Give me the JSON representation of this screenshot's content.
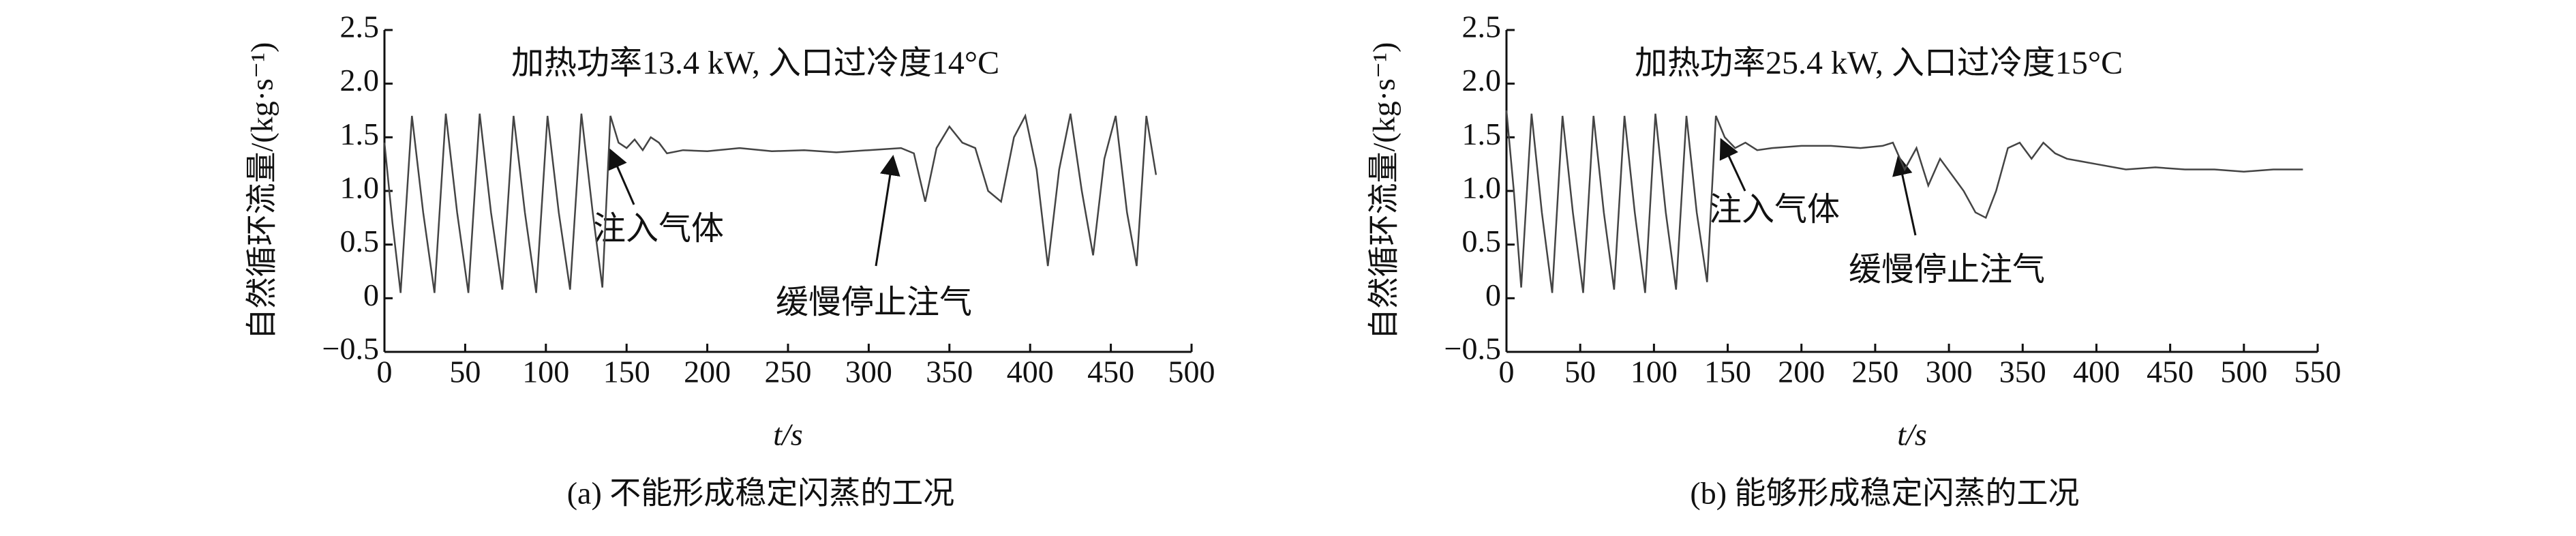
{
  "chart_data": [
    {
      "type": "line",
      "caption": "(a) 不能形成稳定闪蒸的工况",
      "xlabel": "t/s",
      "ylabel": "自然循环流量/(kg·s⁻¹)",
      "annotations": [
        "加热功率13.4 kW, 入口过冷度14°C",
        "注入气体",
        "缓慢停止注气"
      ],
      "color": "#444444",
      "xlim": [
        0,
        500
      ],
      "xticks": [
        0,
        50,
        100,
        150,
        200,
        250,
        300,
        350,
        400,
        450,
        500
      ],
      "ylim": [
        -0.5,
        2.5
      ],
      "yticks": [
        {
          "value": -0.5,
          "label": "−0.5"
        },
        0,
        0.5,
        {
          "value": 1,
          "label": "1.0"
        },
        1.5,
        {
          "value": 2,
          "label": "2.0"
        },
        2.5
      ],
      "x": [
        0,
        5,
        10,
        17,
        24,
        31,
        38,
        45,
        52,
        59,
        66,
        73,
        80,
        87,
        94,
        101,
        108,
        115,
        122,
        129,
        135,
        140,
        145,
        150,
        155,
        160,
        165,
        170,
        175,
        185,
        200,
        220,
        240,
        260,
        280,
        300,
        320,
        328,
        335,
        342,
        350,
        358,
        366,
        374,
        382,
        390,
        397,
        404,
        411,
        418,
        425,
        432,
        439,
        446,
        453,
        460,
        466,
        472,
        478
      ],
      "values": [
        1.45,
        0.7,
        0.05,
        1.7,
        0.8,
        0.05,
        1.72,
        0.8,
        0.05,
        1.72,
        0.8,
        0.08,
        1.7,
        0.8,
        0.05,
        1.7,
        0.8,
        0.08,
        1.72,
        0.8,
        0.1,
        1.7,
        1.45,
        1.4,
        1.48,
        1.38,
        1.5,
        1.45,
        1.35,
        1.38,
        1.37,
        1.4,
        1.37,
        1.38,
        1.36,
        1.38,
        1.4,
        1.35,
        0.9,
        1.4,
        1.6,
        1.45,
        1.4,
        1.0,
        0.9,
        1.5,
        1.7,
        1.2,
        0.3,
        1.2,
        1.72,
        1.0,
        0.4,
        1.3,
        1.7,
        0.8,
        0.3,
        1.7,
        1.15
      ]
    },
    {
      "type": "line",
      "caption": "(b) 能够形成稳定闪蒸的工况",
      "xlabel": "t/s",
      "ylabel": "自然循环流量/(kg·s⁻¹)",
      "annotations": [
        "加热功率25.4 kW, 入口过冷度15°C",
        "注入气体",
        "缓慢停止注气"
      ],
      "color": "#444444",
      "xlim": [
        0,
        550
      ],
      "xticks": [
        0,
        50,
        100,
        150,
        200,
        250,
        300,
        350,
        400,
        450,
        500,
        550
      ],
      "ylim": [
        -0.5,
        2.5
      ],
      "yticks": [
        {
          "value": -0.5,
          "label": "−0.5"
        },
        0,
        0.5,
        {
          "value": 1,
          "label": "1.0"
        },
        1.5,
        {
          "value": 2,
          "label": "2.0"
        },
        2.5
      ],
      "x": [
        0,
        5,
        10,
        17,
        24,
        31,
        38,
        45,
        52,
        59,
        66,
        73,
        80,
        87,
        94,
        101,
        108,
        115,
        122,
        129,
        136,
        142,
        148,
        155,
        162,
        170,
        180,
        200,
        220,
        240,
        255,
        262,
        270,
        278,
        286,
        294,
        302,
        310,
        318,
        325,
        332,
        340,
        348,
        356,
        364,
        372,
        380,
        400,
        420,
        440,
        460,
        480,
        500,
        520,
        540
      ],
      "values": [
        1.75,
        1.0,
        0.1,
        1.72,
        0.8,
        0.05,
        1.7,
        0.8,
        0.05,
        1.7,
        0.8,
        0.08,
        1.7,
        0.8,
        0.05,
        1.72,
        0.8,
        0.08,
        1.7,
        0.8,
        0.15,
        1.7,
        1.5,
        1.4,
        1.45,
        1.38,
        1.4,
        1.42,
        1.42,
        1.4,
        1.42,
        1.45,
        1.2,
        1.4,
        1.05,
        1.3,
        1.15,
        1.0,
        0.8,
        0.75,
        1.0,
        1.4,
        1.45,
        1.3,
        1.45,
        1.35,
        1.3,
        1.25,
        1.2,
        1.22,
        1.2,
        1.2,
        1.18,
        1.2,
        1.2
      ]
    }
  ]
}
